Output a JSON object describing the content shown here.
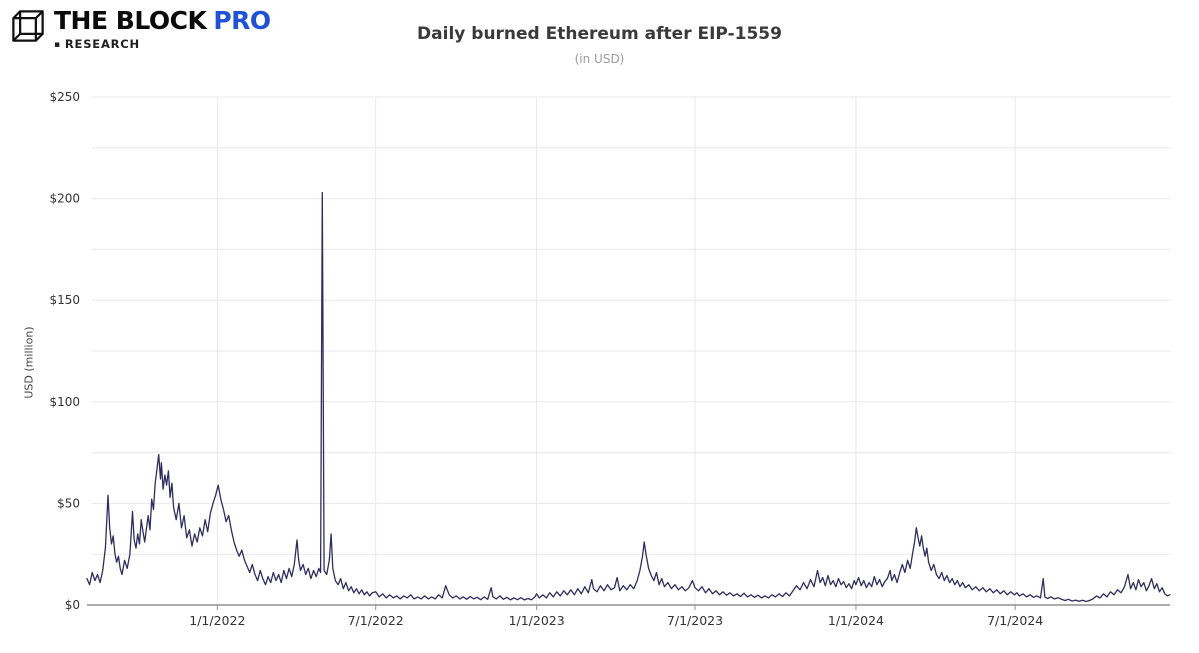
{
  "header": {
    "brand": {
      "name": "THE BLOCK",
      "pro": "PRO",
      "pro_color": "#1d52d9",
      "research_bullet": "▪",
      "research_label": "RESEARCH"
    },
    "title": "Daily burned Ethereum after EIP-1559",
    "subtitle": "(in USD)"
  },
  "chart_data": {
    "type": "line",
    "title": "Daily burned Ethereum after EIP-1559",
    "subtitle": "(in USD)",
    "xlabel": "",
    "ylabel": "USD (million)",
    "legend": "none",
    "grid": true,
    "line_color": "#312b63",
    "grid_color": "#e8e8e8",
    "axis_color": "#909090",
    "tick_text_color": "#333333",
    "ylim": [
      0,
      250
    ],
    "y_grid_step": 25,
    "y_ticks": [
      0,
      50,
      100,
      150,
      200,
      250
    ],
    "y_tick_labels": [
      "$0",
      "$50",
      "$100",
      "$150",
      "$200",
      "$250"
    ],
    "x_domain_days": [
      0,
      1238
    ],
    "x_ticks": [
      {
        "day": 149,
        "label": "1/1/2022"
      },
      {
        "day": 330,
        "label": "7/1/2022"
      },
      {
        "day": 514,
        "label": "1/1/2023"
      },
      {
        "day": 695,
        "label": "7/1/2023"
      },
      {
        "day": 879,
        "label": "1/1/2024"
      },
      {
        "day": 1061,
        "label": "7/1/2024"
      }
    ],
    "points": [
      [
        0,
        13
      ],
      [
        3,
        10
      ],
      [
        6,
        16
      ],
      [
        9,
        12
      ],
      [
        12,
        15
      ],
      [
        15,
        11
      ],
      [
        18,
        17
      ],
      [
        21,
        28
      ],
      [
        24,
        54
      ],
      [
        26,
        38
      ],
      [
        28,
        30
      ],
      [
        30,
        34
      ],
      [
        32,
        25
      ],
      [
        34,
        21
      ],
      [
        36,
        24
      ],
      [
        38,
        18
      ],
      [
        40,
        15
      ],
      [
        43,
        22
      ],
      [
        46,
        18
      ],
      [
        49,
        25
      ],
      [
        52,
        46
      ],
      [
        54,
        32
      ],
      [
        56,
        28
      ],
      [
        58,
        35
      ],
      [
        60,
        30
      ],
      [
        62,
        42
      ],
      [
        64,
        36
      ],
      [
        66,
        31
      ],
      [
        68,
        38
      ],
      [
        70,
        44
      ],
      [
        72,
        37
      ],
      [
        74,
        52
      ],
      [
        76,
        47
      ],
      [
        78,
        60
      ],
      [
        80,
        67
      ],
      [
        82,
        74
      ],
      [
        84,
        62
      ],
      [
        85,
        70
      ],
      [
        87,
        57
      ],
      [
        89,
        64
      ],
      [
        91,
        59
      ],
      [
        93,
        66
      ],
      [
        95,
        53
      ],
      [
        97,
        60
      ],
      [
        99,
        48
      ],
      [
        102,
        42
      ],
      [
        105,
        50
      ],
      [
        108,
        38
      ],
      [
        111,
        44
      ],
      [
        114,
        33
      ],
      [
        117,
        37
      ],
      [
        120,
        29
      ],
      [
        123,
        35
      ],
      [
        126,
        31
      ],
      [
        129,
        38
      ],
      [
        132,
        34
      ],
      [
        135,
        42
      ],
      [
        138,
        36
      ],
      [
        141,
        45
      ],
      [
        144,
        50
      ],
      [
        147,
        54
      ],
      [
        150,
        59
      ],
      [
        153,
        52
      ],
      [
        156,
        47
      ],
      [
        159,
        41
      ],
      [
        162,
        44
      ],
      [
        165,
        37
      ],
      [
        168,
        31
      ],
      [
        171,
        27
      ],
      [
        174,
        24
      ],
      [
        177,
        27
      ],
      [
        180,
        22
      ],
      [
        183,
        19
      ],
      [
        186,
        16
      ],
      [
        189,
        20
      ],
      [
        192,
        15
      ],
      [
        195,
        12
      ],
      [
        198,
        17
      ],
      [
        201,
        13
      ],
      [
        204,
        10
      ],
      [
        207,
        14
      ],
      [
        210,
        11
      ],
      [
        213,
        16
      ],
      [
        216,
        12
      ],
      [
        219,
        15
      ],
      [
        222,
        11
      ],
      [
        225,
        17
      ],
      [
        228,
        13
      ],
      [
        231,
        18
      ],
      [
        234,
        14
      ],
      [
        237,
        20
      ],
      [
        240,
        32
      ],
      [
        242,
        22
      ],
      [
        244,
        17
      ],
      [
        247,
        20
      ],
      [
        250,
        15
      ],
      [
        253,
        18
      ],
      [
        256,
        13
      ],
      [
        259,
        17
      ],
      [
        262,
        14
      ],
      [
        265,
        18
      ],
      [
        267,
        16
      ],
      [
        269,
        203
      ],
      [
        271,
        17
      ],
      [
        274,
        15
      ],
      [
        277,
        22
      ],
      [
        279,
        35
      ],
      [
        281,
        18
      ],
      [
        284,
        12
      ],
      [
        287,
        10
      ],
      [
        290,
        13
      ],
      [
        293,
        8
      ],
      [
        296,
        11
      ],
      [
        299,
        7
      ],
      [
        302,
        9
      ],
      [
        305,
        6
      ],
      [
        308,
        8
      ],
      [
        311,
        5.5
      ],
      [
        314,
        7.5
      ],
      [
        317,
        5
      ],
      [
        320,
        6.5
      ],
      [
        323,
        4.5
      ],
      [
        326,
        6
      ],
      [
        330,
        6.5
      ],
      [
        334,
        4
      ],
      [
        338,
        5.5
      ],
      [
        342,
        3.5
      ],
      [
        346,
        5
      ],
      [
        350,
        3.5
      ],
      [
        354,
        4.5
      ],
      [
        358,
        3
      ],
      [
        362,
        4.5
      ],
      [
        366,
        3.5
      ],
      [
        370,
        5
      ],
      [
        374,
        3
      ],
      [
        378,
        4
      ],
      [
        382,
        3
      ],
      [
        386,
        4.5
      ],
      [
        390,
        3
      ],
      [
        394,
        4
      ],
      [
        398,
        3
      ],
      [
        402,
        5
      ],
      [
        406,
        3.5
      ],
      [
        410,
        9.5
      ],
      [
        414,
        5
      ],
      [
        418,
        3.5
      ],
      [
        422,
        4.5
      ],
      [
        426,
        3
      ],
      [
        430,
        4
      ],
      [
        434,
        2.8
      ],
      [
        438,
        4.2
      ],
      [
        442,
        3
      ],
      [
        446,
        3.8
      ],
      [
        450,
        2.6
      ],
      [
        454,
        4
      ],
      [
        458,
        2.8
      ],
      [
        462,
        8.5
      ],
      [
        464,
        4
      ],
      [
        468,
        3
      ],
      [
        472,
        4.5
      ],
      [
        476,
        2.8
      ],
      [
        480,
        3.8
      ],
      [
        484,
        2.5
      ],
      [
        488,
        3.5
      ],
      [
        492,
        2.6
      ],
      [
        496,
        3.6
      ],
      [
        500,
        2.5
      ],
      [
        504,
        3.2
      ],
      [
        508,
        2.6
      ],
      [
        512,
        4
      ],
      [
        514,
        5.5
      ],
      [
        517,
        3.5
      ],
      [
        521,
        5
      ],
      [
        525,
        3.5
      ],
      [
        529,
        6
      ],
      [
        533,
        4
      ],
      [
        537,
        6.5
      ],
      [
        541,
        4.5
      ],
      [
        545,
        7
      ],
      [
        549,
        5
      ],
      [
        553,
        7.5
      ],
      [
        557,
        5
      ],
      [
        561,
        8
      ],
      [
        565,
        5.5
      ],
      [
        569,
        9
      ],
      [
        573,
        6
      ],
      [
        577,
        12.5
      ],
      [
        579,
        8
      ],
      [
        583,
        6.5
      ],
      [
        587,
        9.5
      ],
      [
        591,
        7
      ],
      [
        595,
        10
      ],
      [
        599,
        7.5
      ],
      [
        603,
        8.5
      ],
      [
        606,
        13.5
      ],
      [
        609,
        7
      ],
      [
        613,
        9.5
      ],
      [
        617,
        7.5
      ],
      [
        621,
        10
      ],
      [
        625,
        8
      ],
      [
        629,
        12
      ],
      [
        632,
        17
      ],
      [
        635,
        24
      ],
      [
        637,
        31
      ],
      [
        639,
        25
      ],
      [
        642,
        18
      ],
      [
        645,
        14.5
      ],
      [
        648,
        12
      ],
      [
        651,
        16
      ],
      [
        654,
        10
      ],
      [
        657,
        13
      ],
      [
        660,
        9
      ],
      [
        664,
        11
      ],
      [
        668,
        8
      ],
      [
        672,
        10
      ],
      [
        676,
        7.5
      ],
      [
        680,
        9
      ],
      [
        684,
        7
      ],
      [
        688,
        8.5
      ],
      [
        692,
        12
      ],
      [
        695,
        8.5
      ],
      [
        699,
        7
      ],
      [
        703,
        9
      ],
      [
        707,
        6
      ],
      [
        711,
        8
      ],
      [
        715,
        5.5
      ],
      [
        719,
        7
      ],
      [
        723,
        5
      ],
      [
        727,
        6.5
      ],
      [
        731,
        4.8
      ],
      [
        735,
        6
      ],
      [
        739,
        4.5
      ],
      [
        743,
        5.5
      ],
      [
        747,
        4.2
      ],
      [
        751,
        5.8
      ],
      [
        755,
        4
      ],
      [
        759,
        5
      ],
      [
        763,
        3.8
      ],
      [
        767,
        4.8
      ],
      [
        771,
        3.5
      ],
      [
        775,
        4.5
      ],
      [
        779,
        3.5
      ],
      [
        783,
        5
      ],
      [
        787,
        4
      ],
      [
        791,
        5.5
      ],
      [
        795,
        4.2
      ],
      [
        799,
        6
      ],
      [
        803,
        4.5
      ],
      [
        807,
        7
      ],
      [
        811,
        9.5
      ],
      [
        815,
        7.5
      ],
      [
        819,
        11
      ],
      [
        823,
        8
      ],
      [
        827,
        12.5
      ],
      [
        831,
        9
      ],
      [
        835,
        17
      ],
      [
        838,
        11
      ],
      [
        841,
        13.5
      ],
      [
        844,
        9.5
      ],
      [
        847,
        14.5
      ],
      [
        850,
        10
      ],
      [
        853,
        12
      ],
      [
        856,
        9
      ],
      [
        859,
        13
      ],
      [
        862,
        10
      ],
      [
        865,
        11.5
      ],
      [
        868,
        8.5
      ],
      [
        871,
        10.5
      ],
      [
        874,
        8
      ],
      [
        877,
        12
      ],
      [
        879,
        10
      ],
      [
        882,
        13.5
      ],
      [
        885,
        9.5
      ],
      [
        888,
        12
      ],
      [
        891,
        8.5
      ],
      [
        894,
        11
      ],
      [
        897,
        9
      ],
      [
        900,
        14
      ],
      [
        903,
        10
      ],
      [
        906,
        12.5
      ],
      [
        909,
        9
      ],
      [
        912,
        11.5
      ],
      [
        915,
        13
      ],
      [
        918,
        17
      ],
      [
        920,
        12
      ],
      [
        923,
        15
      ],
      [
        926,
        11
      ],
      [
        929,
        16
      ],
      [
        932,
        20
      ],
      [
        935,
        16
      ],
      [
        938,
        22
      ],
      [
        941,
        18
      ],
      [
        944,
        26
      ],
      [
        946,
        31
      ],
      [
        948,
        38
      ],
      [
        950,
        33
      ],
      [
        952,
        29
      ],
      [
        954,
        34
      ],
      [
        956,
        28
      ],
      [
        958,
        24
      ],
      [
        960,
        28
      ],
      [
        962,
        21
      ],
      [
        965,
        17
      ],
      [
        968,
        20
      ],
      [
        971,
        15
      ],
      [
        974,
        13
      ],
      [
        977,
        16
      ],
      [
        980,
        12
      ],
      [
        983,
        14.5
      ],
      [
        986,
        11
      ],
      [
        989,
        13
      ],
      [
        992,
        10
      ],
      [
        995,
        12
      ],
      [
        998,
        9
      ],
      [
        1001,
        11
      ],
      [
        1004,
        8.5
      ],
      [
        1008,
        10
      ],
      [
        1012,
        7.5
      ],
      [
        1016,
        9
      ],
      [
        1020,
        7
      ],
      [
        1024,
        8.5
      ],
      [
        1028,
        6.5
      ],
      [
        1032,
        8
      ],
      [
        1036,
        6
      ],
      [
        1040,
        7.5
      ],
      [
        1044,
        5.5
      ],
      [
        1048,
        7
      ],
      [
        1052,
        5
      ],
      [
        1056,
        6.5
      ],
      [
        1060,
        5
      ],
      [
        1063,
        6
      ],
      [
        1066,
        4.5
      ],
      [
        1070,
        5.5
      ],
      [
        1074,
        4
      ],
      [
        1078,
        5
      ],
      [
        1082,
        3.8
      ],
      [
        1086,
        4.5
      ],
      [
        1090,
        3.5
      ],
      [
        1093,
        13
      ],
      [
        1095,
        4
      ],
      [
        1098,
        3.2
      ],
      [
        1102,
        4
      ],
      [
        1106,
        3
      ],
      [
        1110,
        3.6
      ],
      [
        1114,
        2.8
      ],
      [
        1118,
        2.2
      ],
      [
        1122,
        2.8
      ],
      [
        1126,
        1.9
      ],
      [
        1130,
        2.4
      ],
      [
        1134,
        1.8
      ],
      [
        1138,
        2.3
      ],
      [
        1142,
        1.7
      ],
      [
        1146,
        2.2
      ],
      [
        1150,
        3
      ],
      [
        1154,
        4.5
      ],
      [
        1158,
        3.5
      ],
      [
        1162,
        5.5
      ],
      [
        1166,
        4
      ],
      [
        1170,
        6.5
      ],
      [
        1174,
        5
      ],
      [
        1178,
        7.5
      ],
      [
        1182,
        6
      ],
      [
        1186,
        9
      ],
      [
        1190,
        15
      ],
      [
        1193,
        8
      ],
      [
        1196,
        11
      ],
      [
        1199,
        7.5
      ],
      [
        1202,
        12.5
      ],
      [
        1205,
        9
      ],
      [
        1208,
        11
      ],
      [
        1211,
        7
      ],
      [
        1214,
        9.5
      ],
      [
        1217,
        13
      ],
      [
        1220,
        8
      ],
      [
        1223,
        10.5
      ],
      [
        1226,
        6.5
      ],
      [
        1229,
        8.5
      ],
      [
        1232,
        5.5
      ],
      [
        1235,
        4.5
      ],
      [
        1238,
        5
      ]
    ]
  }
}
